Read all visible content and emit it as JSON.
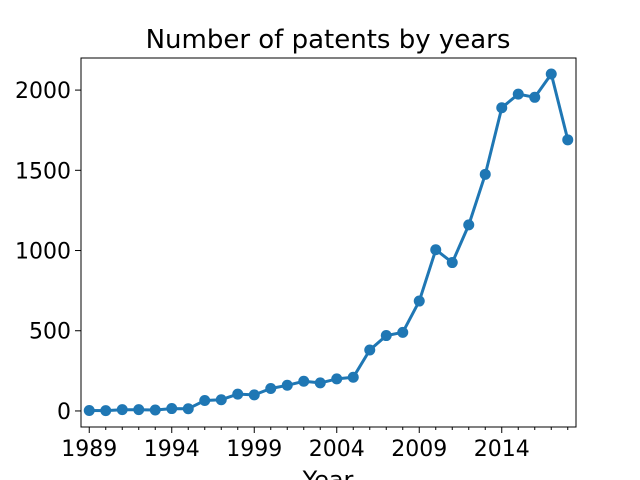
{
  "chart_data": {
    "type": "line",
    "title": "Number of patents by years",
    "xlabel": "Year",
    "ylabel": "",
    "x": [
      1989,
      1990,
      1991,
      1992,
      1993,
      1994,
      1995,
      1996,
      1997,
      1998,
      1999,
      2000,
      2001,
      2002,
      2003,
      2004,
      2005,
      2006,
      2007,
      2008,
      2009,
      2010,
      2011,
      2012,
      2013,
      2014,
      2015,
      2016,
      2017,
      2018
    ],
    "series": [
      {
        "values": [
          3,
          2,
          8,
          8,
          6,
          15,
          14,
          65,
          70,
          105,
          100,
          140,
          160,
          185,
          175,
          200,
          210,
          380,
          470,
          490,
          685,
          1005,
          925,
          1160,
          1475,
          1890,
          1975,
          1955,
          2100,
          1690
        ],
        "color": "#1f77b4",
        "marker": "circle"
      }
    ],
    "xlim": [
      1988.5,
      2018.5
    ],
    "ylim": [
      -100,
      2200
    ],
    "xticks_major": [
      "1989",
      "1994",
      "1999",
      "2004",
      "2009",
      "2014"
    ],
    "xticks_minor": true,
    "yticks": [
      "0",
      "500",
      "1000",
      "1500",
      "2000"
    ],
    "grid": false,
    "legend": "none"
  }
}
